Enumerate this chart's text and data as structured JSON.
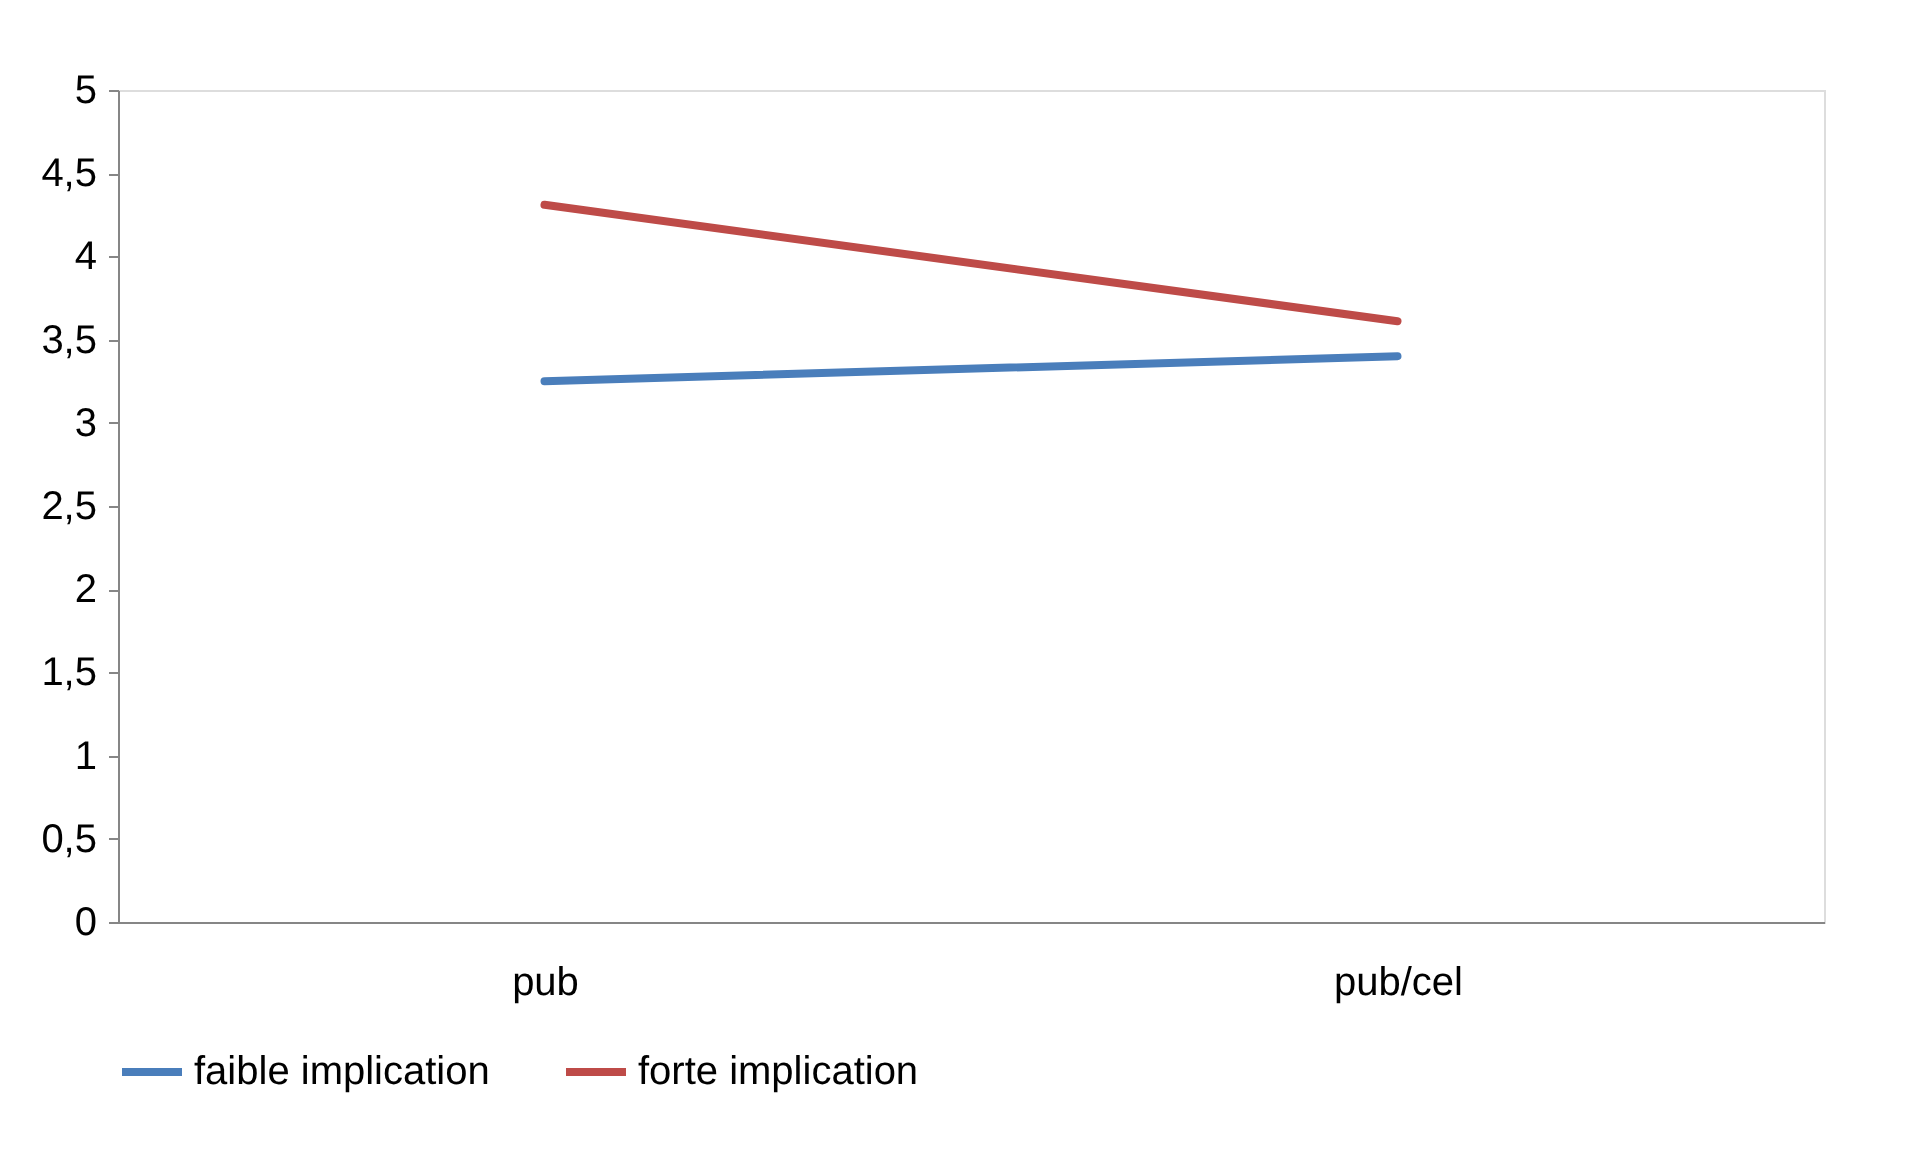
{
  "chart_data": {
    "type": "line",
    "categories": [
      "pub",
      "pub/cel"
    ],
    "series": [
      {
        "name": "faible implication",
        "color": "#4a7ebb",
        "values": [
          3.25,
          3.4
        ]
      },
      {
        "name": "forte implication",
        "color": "#be4b48",
        "values": [
          4.31,
          3.61
        ]
      }
    ],
    "ylim": [
      0,
      5
    ],
    "yticks": [
      0,
      {
        "value": 0.5,
        "label": "0,5"
      },
      1,
      {
        "value": 1.5,
        "label": "1,5"
      },
      2,
      {
        "value": 2.5,
        "label": "2,5"
      },
      3,
      {
        "value": 3.5,
        "label": "3,5"
      },
      4,
      {
        "value": 4.5,
        "label": "4,5"
      },
      5
    ],
    "legend": "bottom",
    "grid": false,
    "marker": "none",
    "line_style": "solid"
  }
}
